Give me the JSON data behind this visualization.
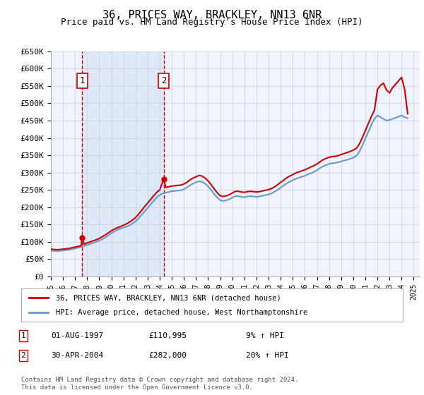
{
  "title": "36, PRICES WAY, BRACKLEY, NN13 6NR",
  "subtitle": "Price paid vs. HM Land Registry's House Price Index (HPI)",
  "ylabel": "",
  "xlabel": "",
  "ylim": [
    0,
    650000
  ],
  "yticks": [
    0,
    50000,
    100000,
    150000,
    200000,
    250000,
    300000,
    350000,
    400000,
    450000,
    500000,
    550000,
    600000,
    650000
  ],
  "ytick_labels": [
    "£0",
    "£50K",
    "£100K",
    "£150K",
    "£200K",
    "£250K",
    "£300K",
    "£350K",
    "£400K",
    "£450K",
    "£500K",
    "£550K",
    "£600K",
    "£650K"
  ],
  "xlim_start": 1995.0,
  "xlim_end": 2025.5,
  "bg_color": "#ffffff",
  "plot_bg_color": "#f0f4ff",
  "grid_color": "#cccccc",
  "red_line_color": "#cc0000",
  "blue_line_color": "#6699cc",
  "vline_color": "#cc0000",
  "shade_color": "#dde8f8",
  "transaction1_x": 1997.583,
  "transaction1_y": 110995,
  "transaction2_x": 2004.33,
  "transaction2_y": 282000,
  "legend_label1": "36, PRICES WAY, BRACKLEY, NN13 6NR (detached house)",
  "legend_label2": "HPI: Average price, detached house, West Northamptonshire",
  "table_row1": [
    "1",
    "01-AUG-1997",
    "£110,995",
    "9% ↑ HPI"
  ],
  "table_row2": [
    "2",
    "30-APR-2004",
    "£282,000",
    "20% ↑ HPI"
  ],
  "footnote1": "Contains HM Land Registry data © Crown copyright and database right 2024.",
  "footnote2": "This data is licensed under the Open Government Licence v3.0.",
  "hpi_years": [
    1995.0,
    1995.25,
    1995.5,
    1995.75,
    1996.0,
    1996.25,
    1996.5,
    1996.75,
    1997.0,
    1997.25,
    1997.5,
    1997.75,
    1998.0,
    1998.25,
    1998.5,
    1998.75,
    1999.0,
    1999.25,
    1999.5,
    1999.75,
    2000.0,
    2000.25,
    2000.5,
    2000.75,
    2001.0,
    2001.25,
    2001.5,
    2001.75,
    2002.0,
    2002.25,
    2002.5,
    2002.75,
    2003.0,
    2003.25,
    2003.5,
    2003.75,
    2004.0,
    2004.25,
    2004.5,
    2004.75,
    2005.0,
    2005.25,
    2005.5,
    2005.75,
    2006.0,
    2006.25,
    2006.5,
    2006.75,
    2007.0,
    2007.25,
    2007.5,
    2007.75,
    2008.0,
    2008.25,
    2008.5,
    2008.75,
    2009.0,
    2009.25,
    2009.5,
    2009.75,
    2010.0,
    2010.25,
    2010.5,
    2010.75,
    2011.0,
    2011.25,
    2011.5,
    2011.75,
    2012.0,
    2012.25,
    2012.5,
    2012.75,
    2013.0,
    2013.25,
    2013.5,
    2013.75,
    2014.0,
    2014.25,
    2014.5,
    2014.75,
    2015.0,
    2015.25,
    2015.5,
    2015.75,
    2016.0,
    2016.25,
    2016.5,
    2016.75,
    2017.0,
    2017.25,
    2017.5,
    2017.75,
    2018.0,
    2018.25,
    2018.5,
    2018.75,
    2019.0,
    2019.25,
    2019.5,
    2019.75,
    2020.0,
    2020.25,
    2020.5,
    2020.75,
    2021.0,
    2021.25,
    2021.5,
    2021.75,
    2022.0,
    2022.25,
    2022.5,
    2022.75,
    2023.0,
    2023.25,
    2023.5,
    2023.75,
    2024.0,
    2024.25,
    2024.5
  ],
  "hpi_values": [
    75000,
    74000,
    73500,
    74000,
    75000,
    76000,
    77000,
    79000,
    81000,
    83000,
    85000,
    88000,
    91000,
    94000,
    97000,
    100000,
    104000,
    108000,
    113000,
    119000,
    125000,
    130000,
    135000,
    138000,
    141000,
    144000,
    148000,
    153000,
    159000,
    168000,
    178000,
    188000,
    198000,
    208000,
    218000,
    228000,
    235000,
    240000,
    242000,
    244000,
    246000,
    247000,
    248000,
    249000,
    252000,
    257000,
    263000,
    268000,
    272000,
    275000,
    273000,
    268000,
    260000,
    250000,
    238000,
    228000,
    220000,
    218000,
    220000,
    223000,
    228000,
    232000,
    232000,
    230000,
    229000,
    231000,
    232000,
    231000,
    230000,
    231000,
    233000,
    235000,
    237000,
    240000,
    245000,
    250000,
    257000,
    263000,
    269000,
    274000,
    278000,
    282000,
    285000,
    288000,
    291000,
    295000,
    298000,
    302000,
    307000,
    313000,
    318000,
    322000,
    325000,
    327000,
    328000,
    330000,
    332000,
    335000,
    337000,
    340000,
    343000,
    348000,
    360000,
    378000,
    398000,
    418000,
    438000,
    455000,
    465000,
    460000,
    455000,
    450000,
    452000,
    455000,
    458000,
    462000,
    465000,
    460000,
    457000
  ],
  "red_years": [
    1995.0,
    1995.25,
    1995.5,
    1995.75,
    1996.0,
    1996.25,
    1996.5,
    1996.75,
    1997.0,
    1997.25,
    1997.5,
    1997.583,
    1997.75,
    1998.0,
    1998.25,
    1998.5,
    1998.75,
    1999.0,
    1999.25,
    1999.5,
    1999.75,
    2000.0,
    2000.25,
    2000.5,
    2000.75,
    2001.0,
    2001.25,
    2001.5,
    2001.75,
    2002.0,
    2002.25,
    2002.5,
    2002.75,
    2003.0,
    2003.25,
    2003.5,
    2003.75,
    2004.0,
    2004.33,
    2004.5,
    2004.75,
    2005.0,
    2005.25,
    2005.5,
    2005.75,
    2006.0,
    2006.25,
    2006.5,
    2006.75,
    2007.0,
    2007.25,
    2007.5,
    2007.75,
    2008.0,
    2008.25,
    2008.5,
    2008.75,
    2009.0,
    2009.25,
    2009.5,
    2009.75,
    2010.0,
    2010.25,
    2010.5,
    2010.75,
    2011.0,
    2011.25,
    2011.5,
    2011.75,
    2012.0,
    2012.25,
    2012.5,
    2012.75,
    2013.0,
    2013.25,
    2013.5,
    2013.75,
    2014.0,
    2014.25,
    2014.5,
    2014.75,
    2015.0,
    2015.25,
    2015.5,
    2015.75,
    2016.0,
    2016.25,
    2016.5,
    2016.75,
    2017.0,
    2017.25,
    2017.5,
    2017.75,
    2018.0,
    2018.25,
    2018.5,
    2018.75,
    2019.0,
    2019.25,
    2019.5,
    2019.75,
    2020.0,
    2020.25,
    2020.5,
    2020.75,
    2021.0,
    2021.25,
    2021.5,
    2021.75,
    2022.0,
    2022.25,
    2022.5,
    2022.75,
    2023.0,
    2023.25,
    2023.5,
    2023.75,
    2024.0,
    2024.25,
    2024.5
  ],
  "red_values": [
    79000,
    78000,
    77500,
    78000,
    79000,
    80000,
    81000,
    83000,
    85000,
    87000,
    89000,
    110995,
    93000,
    97000,
    100000,
    103000,
    106000,
    110000,
    115000,
    120000,
    126000,
    132000,
    137000,
    141000,
    144000,
    148000,
    152000,
    157000,
    163000,
    170000,
    180000,
    191000,
    202000,
    212000,
    223000,
    233000,
    243000,
    250000,
    282000,
    257000,
    259000,
    261000,
    262000,
    263000,
    264000,
    267000,
    272000,
    279000,
    284000,
    288000,
    292000,
    290000,
    284000,
    276000,
    265000,
    253000,
    242000,
    233000,
    231000,
    233000,
    236000,
    241000,
    246000,
    246000,
    244000,
    243000,
    245000,
    246000,
    245000,
    244000,
    245000,
    247000,
    249000,
    251000,
    254000,
    259000,
    265000,
    272000,
    278000,
    285000,
    290000,
    294000,
    299000,
    302000,
    305000,
    308000,
    312000,
    316000,
    320000,
    325000,
    331000,
    337000,
    341000,
    344000,
    346000,
    347000,
    349000,
    352000,
    355000,
    358000,
    361000,
    365000,
    370000,
    382000,
    401000,
    421000,
    442000,
    462000,
    480000,
    540000,
    552000,
    558000,
    538000,
    530000,
    545000,
    555000,
    565000,
    575000,
    540000,
    470000
  ]
}
